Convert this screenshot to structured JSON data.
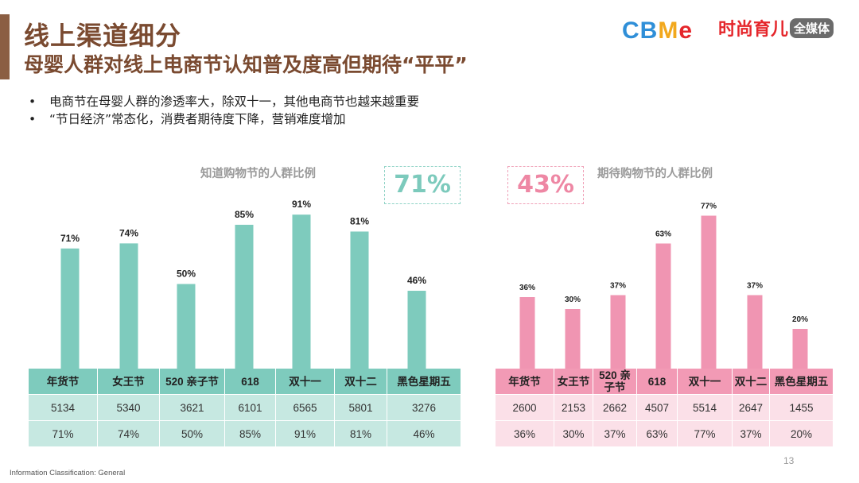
{
  "header": {
    "title": "线上渠道细分",
    "subtitle": "母婴人群对线上电商节认知普及度高但期待“平平”"
  },
  "logos": {
    "cbme": [
      "C",
      "B",
      "M",
      "e"
    ],
    "fashion_main": "时尚育儿",
    "fashion_tag": "全媒体"
  },
  "bullets": [
    "电商节在母婴人群的渗透率大，除双十一，其他电商节也越来越重要",
    "“节日经济”常态化，消费者期待度下降，营销难度增加"
  ],
  "callouts": {
    "known_avg": "71%",
    "expect_avg": "43%"
  },
  "colors": {
    "teal_bar": "#7ecbbd",
    "teal_header": "#7ecbbd",
    "teal_row": "#c6e8e1",
    "pink_bar": "#f095b2",
    "pink_header": "#f29ab5",
    "pink_row": "#fbe0e8",
    "brown": "#7a4a30"
  },
  "chart_data": [
    {
      "type": "bar",
      "title": "知道购物节的人群比例",
      "categories": [
        "年货节",
        "女王节",
        "520 亲子节",
        "618",
        "双十一",
        "双十二",
        "黑色星期五"
      ],
      "values": [
        71,
        74,
        50,
        85,
        91,
        81,
        46
      ],
      "data_labels": [
        "71%",
        "74%",
        "50%",
        "85%",
        "91%",
        "81%",
        "46%"
      ],
      "counts": [
        "5134",
        "5340",
        "3621",
        "6101",
        "6565",
        "5801",
        "3276"
      ],
      "percents": [
        "71%",
        "74%",
        "50%",
        "85%",
        "91%",
        "81%",
        "46%"
      ],
      "ylim": [
        0,
        100
      ]
    },
    {
      "type": "bar",
      "title": "期待购物节的人群比例",
      "categories": [
        "年货节",
        "女王节",
        "520 亲子节",
        "618",
        "双十一",
        "双十二",
        "黑色星期五"
      ],
      "values": [
        36,
        30,
        37,
        63,
        77,
        37,
        20
      ],
      "data_labels": [
        "36%",
        "30%",
        "37%",
        "63%",
        "77%",
        "37%",
        "20%"
      ],
      "counts": [
        "2600",
        "2153",
        "2662",
        "4507",
        "5514",
        "2647",
        "1455"
      ],
      "percents": [
        "36%",
        "30%",
        "37%",
        "63%",
        "77%",
        "37%",
        "20%"
      ],
      "ylim": [
        0,
        100
      ]
    }
  ],
  "footer": {
    "classification": "Information Classification: General",
    "page": "13"
  }
}
